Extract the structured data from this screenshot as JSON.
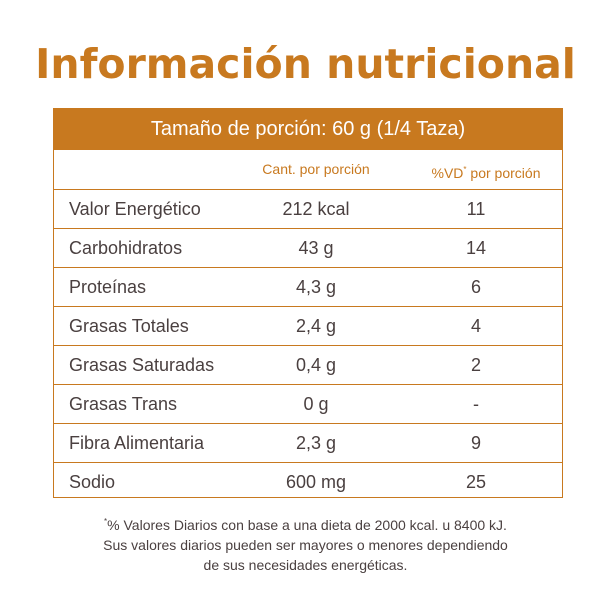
{
  "title": "Información nutricional",
  "serving": "Tamaño de porción: 60 g (1/4 Taza)",
  "columns": {
    "amount": "Cant. por porción",
    "vd_prefix": "%VD",
    "vd_mark": "*",
    "vd_suffix": " por porción"
  },
  "rows": [
    {
      "name": "Valor Energético",
      "amount": "212 kcal",
      "vd": "11"
    },
    {
      "name": "Carbohidratos",
      "amount": "43 g",
      "vd": "14"
    },
    {
      "name": "Proteínas",
      "amount": "4,3 g",
      "vd": "6"
    },
    {
      "name": "Grasas Totales",
      "amount": "2,4 g",
      "vd": "4"
    },
    {
      "name": "Grasas Saturadas",
      "amount": "0,4 g",
      "vd": "2"
    },
    {
      "name": "Grasas Trans",
      "amount": "0 g",
      "vd": "-"
    },
    {
      "name": "Fibra Alimentaria",
      "amount": "2,3 g",
      "vd": "9"
    },
    {
      "name": "Sodio",
      "amount": "600 mg",
      "vd": "25"
    }
  ],
  "footnote": {
    "mark": "*",
    "line1": "% Valores Diarios con base a una dieta de 2000 kcal. u 8400 kJ.",
    "line2": "Sus valores diarios pueden ser mayores o menores dependiendo",
    "line3": "de sus necesidades energéticas."
  },
  "colors": {
    "accent": "#c8791f",
    "text": "#4a4040",
    "background": "#ffffff"
  }
}
